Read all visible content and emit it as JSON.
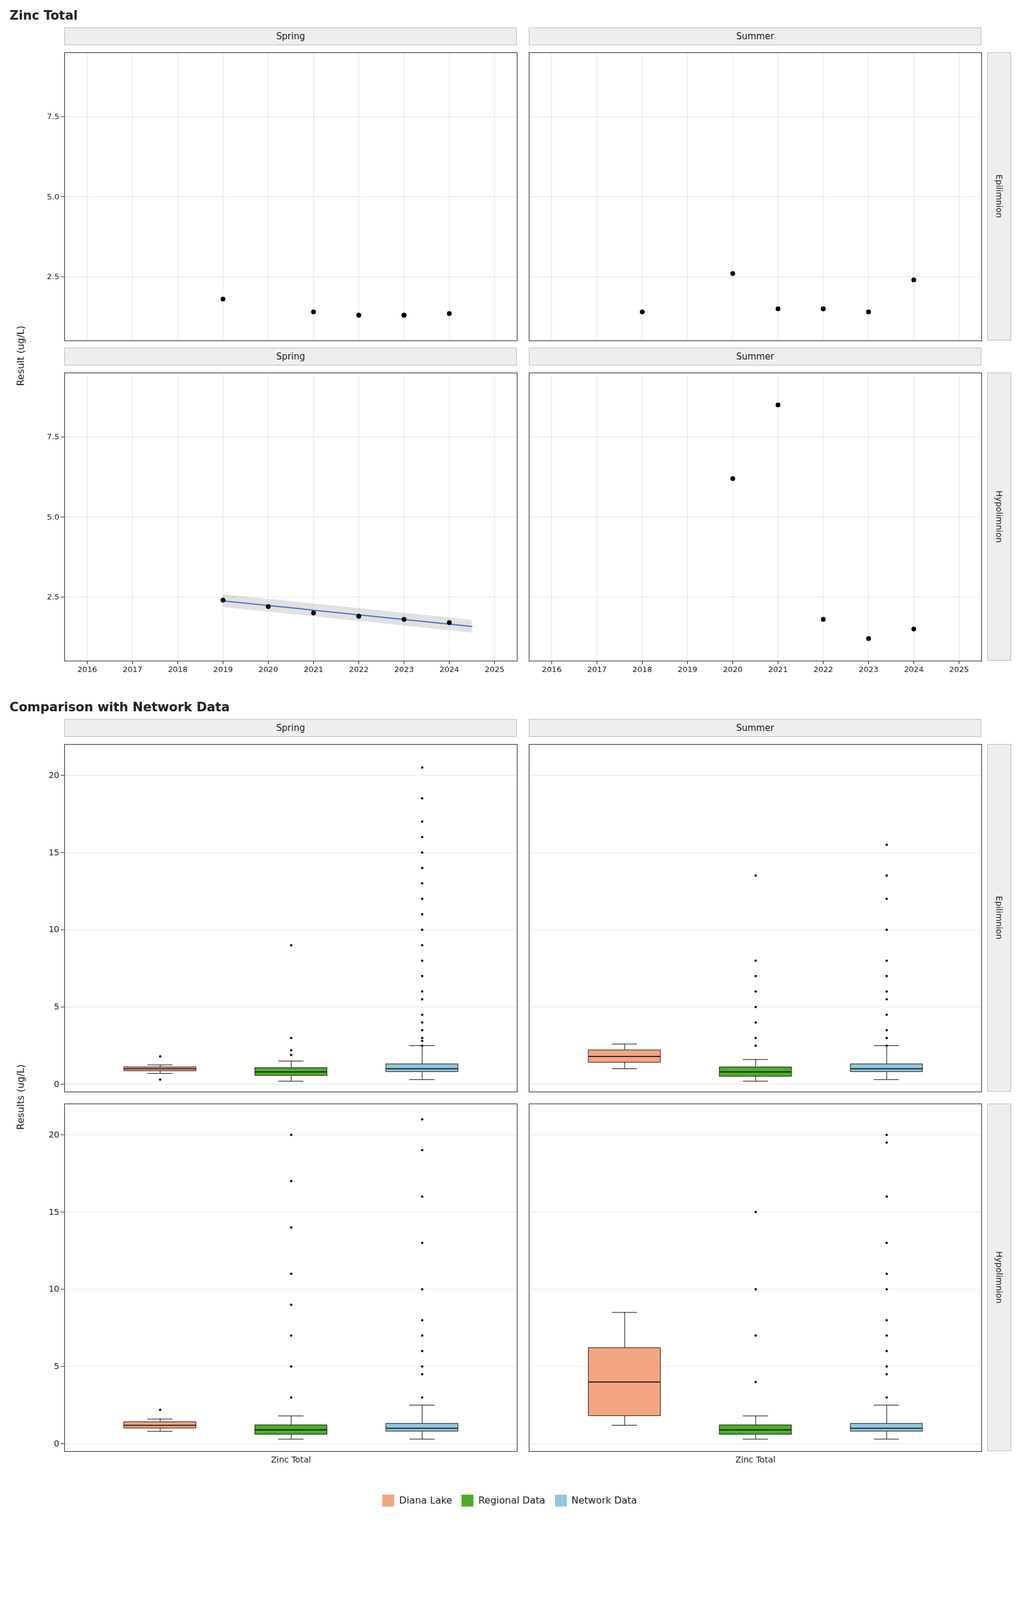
{
  "chart_data": [
    {
      "type": "scatter",
      "title": "Zinc Total",
      "subtitle": "Spring",
      "ylabel": "Result (ug/L)",
      "x": [
        2019,
        2021,
        2022,
        2022,
        2023,
        2023,
        2024
      ],
      "values": [
        1.8,
        1.4,
        1.3,
        1.3,
        1.3,
        1.3,
        1.35
      ],
      "color": "#000000",
      "xlim": [
        2015.5,
        2025.5
      ],
      "xticks": [
        2016,
        2017,
        2018,
        2019,
        2020,
        2021,
        2022,
        2023,
        2024,
        2025
      ],
      "ylim": [
        0.5,
        9.5
      ],
      "yticks": [
        2.5,
        {
          "value": 5,
          "label": "5.0"
        },
        7.5
      ],
      "grid": true,
      "tick_labels": "y"
    },
    {
      "type": "scatter",
      "subtitle": "Summer",
      "annotations": [
        "Epilimnion"
      ],
      "x": [
        2018,
        2020,
        2021,
        2022,
        2022,
        2023,
        2024
      ],
      "values": [
        1.4,
        2.6,
        1.5,
        1.5,
        1.5,
        1.4,
        2.4
      ],
      "color": "#000000",
      "xlim": [
        2015.5,
        2025.5
      ],
      "xticks": [
        2016,
        2017,
        2018,
        2019,
        2020,
        2021,
        2022,
        2023,
        2024,
        2025
      ],
      "ylim": [
        0.5,
        9.5
      ],
      "yticks": [
        2.5,
        {
          "value": 5,
          "label": "5.0"
        },
        7.5
      ],
      "grid": true,
      "tick_labels": false
    },
    {
      "type": "scatter",
      "subtitle": "Spring",
      "x": [
        2019,
        2020,
        2021,
        2022,
        2022,
        2023,
        2024
      ],
      "values": [
        2.4,
        2.2,
        2.0,
        1.9,
        1.9,
        1.8,
        1.7
      ],
      "color": "#000000",
      "trend": {
        "color": "#4472C4",
        "ci_color": "#AAAAAA",
        "x": [
          2019.0,
          2024.5
        ],
        "y": [
          2.38,
          1.58
        ],
        "ci_upper": [
          2.58,
          1.78
        ],
        "ci_lower": [
          2.18,
          1.38
        ]
      },
      "xlim": [
        2015.5,
        2025.5
      ],
      "xticks": [
        2016,
        2017,
        2018,
        2019,
        2020,
        2021,
        2022,
        2023,
        2024,
        2025
      ],
      "ylim": [
        0.5,
        9.5
      ],
      "yticks": [
        2.5,
        {
          "value": 5,
          "label": "5.0"
        },
        7.5
      ],
      "grid": true
    },
    {
      "type": "scatter",
      "subtitle": "Summer",
      "annotations": [
        "Hypolimnion"
      ],
      "x": [
        2020,
        2021,
        2022,
        2023,
        2024
      ],
      "values": [
        6.2,
        8.5,
        1.8,
        1.2,
        1.5
      ],
      "color": "#000000",
      "xlim": [
        2015.5,
        2025.5
      ],
      "xticks": [
        2016,
        2017,
        2018,
        2019,
        2020,
        2021,
        2022,
        2023,
        2024,
        2025
      ],
      "ylim": [
        0.5,
        9.5
      ],
      "yticks": [
        2.5,
        {
          "value": 5,
          "label": "5.0"
        },
        7.5
      ],
      "grid": true,
      "tick_labels": "x"
    },
    {
      "type": "box",
      "title": "Comparison with Network Data",
      "subtitle": "Spring",
      "ylabel": "Results (ug/L)",
      "categories": [
        "Zinc Total"
      ],
      "series": [
        {
          "name": "Diana Lake",
          "color": "#F4A582",
          "values": [
            {
              "median": 1.0,
              "q1": 0.85,
              "q3": 1.1,
              "whisker_low": 0.7,
              "whisker_high": 1.25,
              "outliers": [
                0.3,
                1.8
              ]
            }
          ]
        },
        {
          "name": "Regional Data",
          "color": "#4DAC26",
          "values": [
            {
              "median": 0.8,
              "q1": 0.55,
              "q3": 1.05,
              "whisker_low": 0.2,
              "whisker_high": 1.5,
              "outliers": [
                2.2,
                3.0,
                9.0,
                1.9
              ]
            }
          ]
        },
        {
          "name": "Network Data",
          "color": "#92C5DE",
          "values": [
            {
              "median": 1.0,
              "q1": 0.8,
              "q3": 1.3,
              "whisker_low": 0.3,
              "whisker_high": 2.5,
              "outliers": [
                3.0,
                4.0,
                4.5,
                5.5,
                6.0,
                7.0,
                8.0,
                9.0,
                10.0,
                11.0,
                12.0,
                13.0,
                14.0,
                15.0,
                16.0,
                17.0,
                18.5,
                20.5,
                3.5,
                2.5,
                2.8
              ]
            }
          ]
        }
      ],
      "ylim": [
        -0.5,
        22
      ],
      "yticks": [
        0,
        5,
        10,
        15,
        20
      ],
      "grid": "y",
      "tick_labels": "y"
    },
    {
      "type": "box",
      "subtitle": "Summer",
      "annotations": [
        "Epilimnion"
      ],
      "categories": [
        "Zinc Total"
      ],
      "series": [
        {
          "name": "Diana Lake",
          "color": "#F4A582",
          "values": [
            {
              "median": 1.8,
              "q1": 1.4,
              "q3": 2.2,
              "whisker_low": 1.0,
              "whisker_high": 2.6,
              "outliers": []
            }
          ]
        },
        {
          "name": "Regional Data",
          "color": "#4DAC26",
          "values": [
            {
              "median": 0.8,
              "q1": 0.5,
              "q3": 1.1,
              "whisker_low": 0.2,
              "whisker_high": 1.6,
              "outliers": [
                2.5,
                3.0,
                4.0,
                5.0,
                6.0,
                7.0,
                8.0,
                13.5
              ]
            }
          ]
        },
        {
          "name": "Network Data",
          "color": "#92C5DE",
          "values": [
            {
              "median": 1.0,
              "q1": 0.8,
              "q3": 1.3,
              "whisker_low": 0.3,
              "whisker_high": 2.5,
              "outliers": [
                3.0,
                4.5,
                5.5,
                6.0,
                7.0,
                8.0,
                10.0,
                12.0,
                13.5,
                15.5,
                3.5,
                2.5
              ]
            }
          ]
        }
      ],
      "ylim": [
        -0.5,
        22
      ],
      "yticks": [
        0,
        5,
        10,
        15,
        20
      ],
      "grid": "y",
      "tick_labels": false
    },
    {
      "type": "box",
      "categories": [
        "Zinc Total"
      ],
      "series": [
        {
          "name": "Diana Lake",
          "color": "#F4A582",
          "values": [
            {
              "median": 1.2,
              "q1": 1.0,
              "q3": 1.4,
              "whisker_low": 0.8,
              "whisker_high": 1.6,
              "outliers": [
                2.2
              ]
            }
          ]
        },
        {
          "name": "Regional Data",
          "color": "#4DAC26",
          "values": [
            {
              "median": 0.9,
              "q1": 0.6,
              "q3": 1.2,
              "whisker_low": 0.3,
              "whisker_high": 1.8,
              "outliers": [
                3.0,
                5.0,
                7.0,
                9.0,
                11.0,
                14.0,
                17.0,
                20.0
              ]
            }
          ]
        },
        {
          "name": "Network Data",
          "color": "#92C5DE",
          "values": [
            {
              "median": 1.0,
              "q1": 0.8,
              "q3": 1.3,
              "whisker_low": 0.3,
              "whisker_high": 2.5,
              "outliers": [
                3.0,
                4.5,
                5.0,
                6.0,
                7.0,
                8.0,
                10.0,
                13.0,
                16.0,
                19.0,
                21.0
              ]
            }
          ]
        }
      ],
      "ylim": [
        -0.5,
        22
      ],
      "yticks": [
        0,
        5,
        10,
        15,
        20
      ],
      "grid": "y"
    },
    {
      "type": "box",
      "annotations": [
        "Hypolimnion"
      ],
      "categories": [
        "Zinc Total"
      ],
      "series": [
        {
          "name": "Diana Lake",
          "color": "#F4A582",
          "values": [
            {
              "median": 4.0,
              "q1": 1.8,
              "q3": 6.2,
              "whisker_low": 1.2,
              "whisker_high": 8.5,
              "outliers": []
            }
          ]
        },
        {
          "name": "Regional Data",
          "color": "#4DAC26",
          "values": [
            {
              "median": 0.9,
              "q1": 0.6,
              "q3": 1.2,
              "whisker_low": 0.3,
              "whisker_high": 1.8,
              "outliers": [
                4.0,
                7.0,
                10.0,
                15.0
              ]
            }
          ]
        },
        {
          "name": "Network Data",
          "color": "#92C5DE",
          "values": [
            {
              "median": 1.0,
              "q1": 0.8,
              "q3": 1.3,
              "whisker_low": 0.3,
              "whisker_high": 2.5,
              "outliers": [
                3.0,
                4.5,
                5.0,
                6.0,
                7.0,
                8.0,
                10.0,
                11.0,
                13.0,
                16.0,
                19.5,
                20.0
              ]
            }
          ]
        }
      ],
      "ylim": [
        -0.5,
        22
      ],
      "yticks": [
        0,
        5,
        10,
        15,
        20
      ],
      "grid": "y",
      "tick_labels": "x",
      "legend": "bottom"
    }
  ]
}
